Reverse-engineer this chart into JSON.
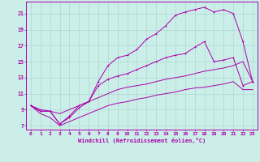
{
  "xlabel": "Windchill (Refroidissement éolien,°C)",
  "background_color": "#cceee8",
  "grid_color": "#aad8d2",
  "line_color": "#aa00aa",
  "xlim": [
    -0.5,
    23.5
  ],
  "ylim": [
    6.5,
    22.5
  ],
  "xticks": [
    0,
    1,
    2,
    3,
    4,
    5,
    6,
    7,
    8,
    9,
    10,
    11,
    12,
    13,
    14,
    15,
    16,
    17,
    18,
    19,
    20,
    21,
    22,
    23
  ],
  "yticks": [
    7,
    9,
    11,
    13,
    15,
    17,
    19,
    21
  ],
  "curve1_x": [
    0,
    1,
    2,
    3,
    4,
    5,
    6,
    7,
    8,
    9,
    10,
    11,
    12,
    13,
    14,
    15,
    16,
    17,
    18,
    19,
    20,
    21,
    22,
    23
  ],
  "curve1_y": [
    9.5,
    8.8,
    8.8,
    7.2,
    8.2,
    9.5,
    10.0,
    12.5,
    14.5,
    15.5,
    15.8,
    16.5,
    17.8,
    18.5,
    19.5,
    20.8,
    21.2,
    21.5,
    21.8,
    21.2,
    21.5,
    21.0,
    17.5,
    12.5
  ],
  "curve2_x": [
    0,
    1,
    2,
    3,
    4,
    5,
    6,
    7,
    8,
    9,
    10,
    11,
    12,
    13,
    14,
    15,
    16,
    17,
    18,
    19,
    20,
    21,
    22,
    23
  ],
  "curve2_y": [
    9.5,
    8.8,
    8.8,
    7.2,
    8.0,
    9.2,
    10.0,
    12.0,
    12.8,
    13.2,
    13.5,
    14.0,
    14.5,
    15.0,
    15.5,
    15.8,
    16.0,
    16.8,
    17.5,
    15.0,
    15.2,
    15.5,
    12.0,
    12.5
  ],
  "curve3_x": [
    0,
    1,
    2,
    3,
    4,
    5,
    6,
    7,
    8,
    9,
    10,
    11,
    12,
    13,
    14,
    15,
    16,
    17,
    18,
    19,
    20,
    21,
    22,
    23
  ],
  "curve3_y": [
    9.5,
    9.0,
    8.8,
    8.5,
    9.0,
    9.5,
    10.0,
    10.5,
    11.0,
    11.5,
    11.8,
    12.0,
    12.2,
    12.5,
    12.8,
    13.0,
    13.2,
    13.5,
    13.8,
    14.0,
    14.2,
    14.5,
    15.0,
    12.5
  ],
  "curve4_x": [
    0,
    1,
    2,
    3,
    4,
    5,
    6,
    7,
    8,
    9,
    10,
    11,
    12,
    13,
    14,
    15,
    16,
    17,
    18,
    19,
    20,
    21,
    22,
    23
  ],
  "curve4_y": [
    9.5,
    8.5,
    8.0,
    7.0,
    7.5,
    8.0,
    8.5,
    9.0,
    9.5,
    9.8,
    10.0,
    10.3,
    10.5,
    10.8,
    11.0,
    11.2,
    11.5,
    11.7,
    11.8,
    12.0,
    12.2,
    12.5,
    11.5,
    11.5
  ]
}
